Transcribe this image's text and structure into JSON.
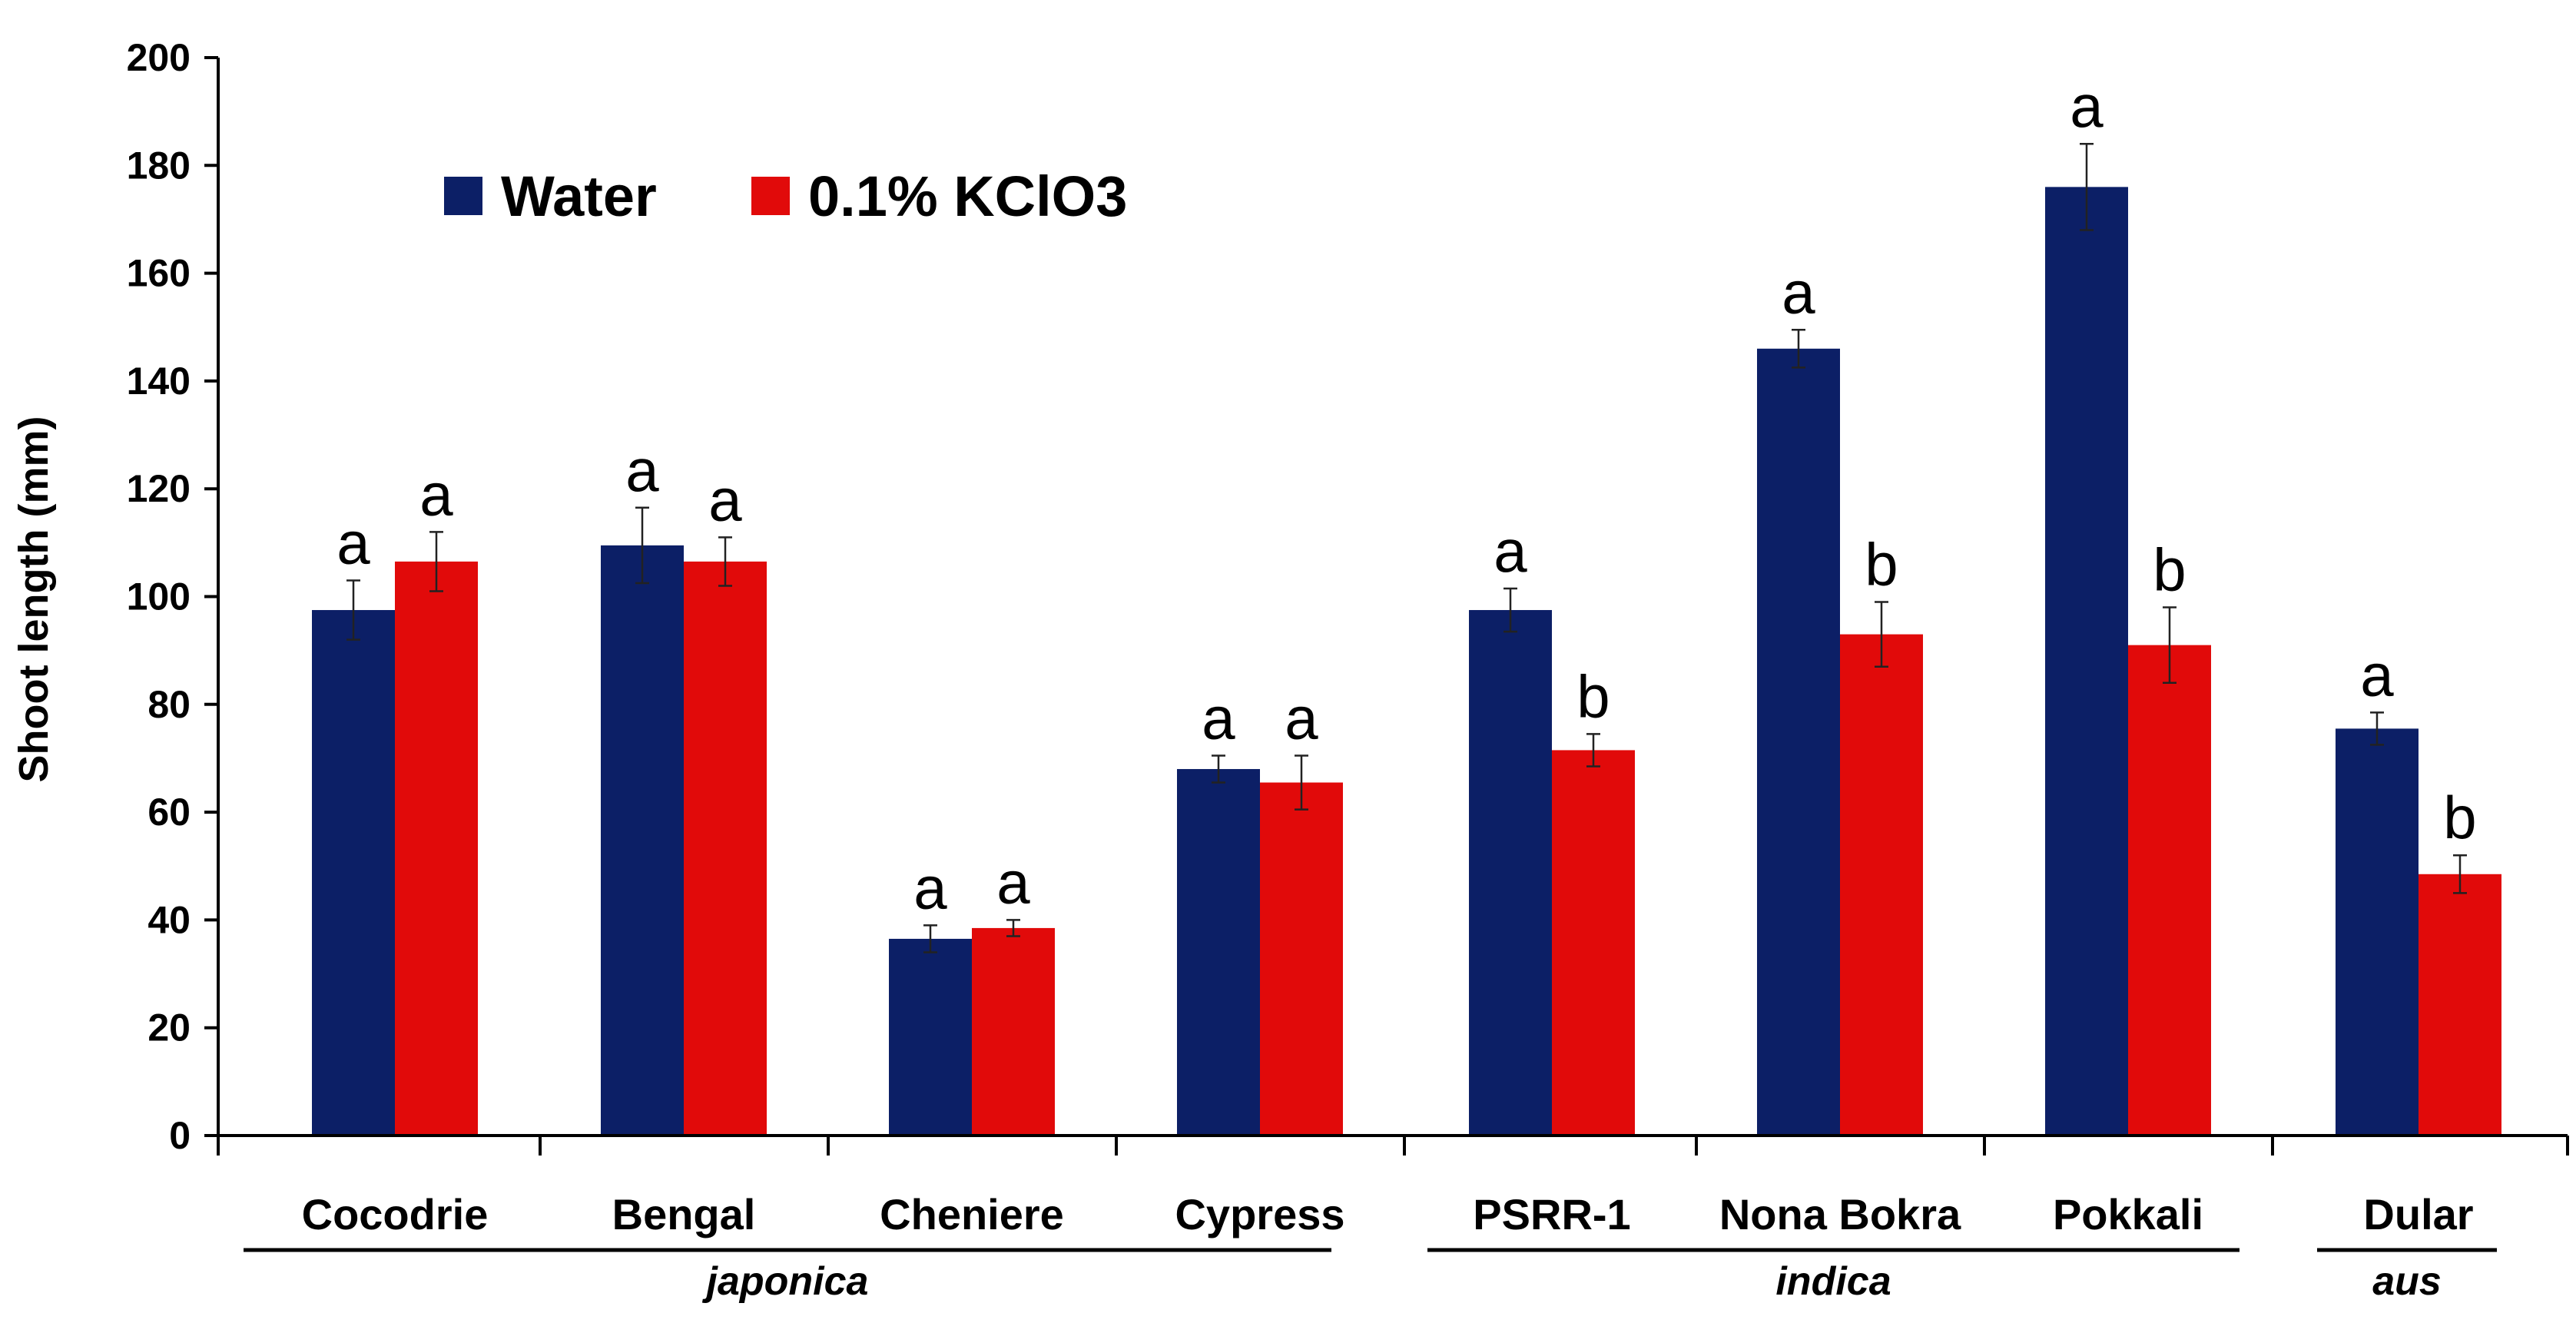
{
  "colors": {
    "water": "#0c1f66",
    "kclo3": "#e10a0a",
    "axis": "#000000"
  },
  "chart_data": {
    "type": "bar",
    "title": "",
    "xlabel": "",
    "ylabel": "Shoot length (mm)",
    "ylim": [
      0,
      200
    ],
    "yticks": [
      "0",
      "20",
      "40",
      "60",
      "80",
      "100",
      "120",
      "140",
      "160",
      "180",
      "200"
    ],
    "legend_position": "top-left",
    "categories": [
      "Cocodrie",
      "Bengal",
      "Cheniere",
      "Cypress",
      "PSRR-1",
      "Nona Bokra",
      "Pokkali",
      "Dular"
    ],
    "series": [
      {
        "name": "Water",
        "values": [
          97.5,
          109.5,
          36.5,
          68,
          97.5,
          146,
          176,
          75.5
        ],
        "errors": [
          5.5,
          7,
          2.5,
          2.5,
          4,
          3.5,
          8,
          3
        ],
        "significance": [
          "a",
          "a",
          "a",
          "a",
          "a",
          "a",
          "a",
          "a"
        ]
      },
      {
        "name": "0.1% KClO3",
        "values": [
          106.5,
          106.5,
          38.5,
          65.5,
          71.5,
          93,
          91,
          48.5
        ],
        "errors": [
          5.5,
          4.5,
          1.5,
          5,
          3,
          6,
          7,
          3.5
        ],
        "significance": [
          "a",
          "a",
          "a",
          "a",
          "b",
          "b",
          "b",
          "b"
        ]
      }
    ],
    "groups": [
      {
        "label": "japonica",
        "categories": [
          "Cocodrie",
          "Bengal",
          "Cheniere",
          "Cypress"
        ]
      },
      {
        "label": "indica",
        "categories": [
          "PSRR-1",
          "Nona Bokra",
          "Pokkali"
        ]
      },
      {
        "label": "aus",
        "categories": [
          "Dular"
        ]
      }
    ]
  }
}
